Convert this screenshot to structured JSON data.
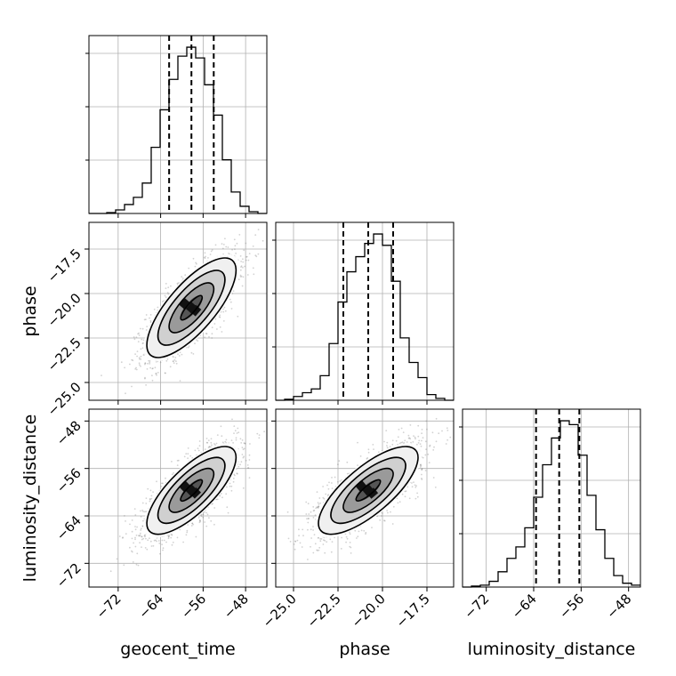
{
  "chart_data": {
    "type": "corner",
    "parameters": [
      "geocent_time",
      "phase",
      "luminosity_distance"
    ],
    "ranges": {
      "geocent_time": [
        -77.5,
        -44.0
      ],
      "phase": [
        -26.0,
        -16.0
      ],
      "luminosity_distance": [
        -76.0,
        -46.0
      ]
    },
    "ticks": {
      "geocent_time": [
        -72,
        -64,
        -56,
        -48
      ],
      "phase": [
        -25.0,
        -22.5,
        -20.0,
        -17.5
      ],
      "luminosity_distance": [
        -72,
        -64,
        -56,
        -48
      ]
    },
    "tick_labels": {
      "geocent_time": [
        "−72",
        "−64",
        "−56",
        "−48"
      ],
      "phase": [
        "−25.0",
        "−22.5",
        "−20.0",
        "−17.5"
      ],
      "luminosity_distance": [
        "−72",
        "−64",
        "−56",
        "−48"
      ]
    },
    "axis_labels": {
      "x": [
        "geocent_time",
        "phase",
        "luminosity_distance"
      ],
      "y": [
        "phase",
        "luminosity_distance"
      ]
    },
    "quantiles": {
      "geocent_time": [
        -62.4,
        -58.2,
        -54.0
      ],
      "phase": [
        -22.2,
        -20.8,
        -19.4
      ],
      "luminosity_distance": [
        -63.6,
        -59.7,
        -56.3
      ]
    },
    "histograms": {
      "geocent_time": {
        "edges": [
          -77.5,
          -75.825,
          -74.15,
          -72.475,
          -70.8,
          -69.125,
          -67.45,
          -65.775,
          -64.1,
          -62.425,
          -60.75,
          -59.075,
          -57.4,
          -55.725,
          -54.05,
          -52.375,
          -50.7,
          -49.025,
          -47.35,
          -45.675,
          -44.0
        ],
        "counts": [
          0,
          0,
          0.5,
          2,
          5,
          9,
          17,
          37,
          58,
          75,
          88,
          93,
          87,
          72,
          55,
          30,
          12,
          4,
          1,
          0
        ]
      },
      "phase": {
        "edges": [
          -26.0,
          -25.5,
          -25.0,
          -24.5,
          -24.0,
          -23.5,
          -23.0,
          -22.5,
          -22.0,
          -21.5,
          -21.0,
          -20.5,
          -20.0,
          -19.5,
          -19.0,
          -18.5,
          -18.0,
          -17.5,
          -17.0,
          -16.5,
          -16.0
        ],
        "counts": [
          0,
          0.5,
          2,
          4,
          6,
          13,
          30,
          52,
          68,
          76,
          83,
          88,
          82,
          63,
          33,
          20,
          12,
          3,
          1,
          0
        ]
      },
      "luminosity_distance": {
        "edges": [
          -76.0,
          -74.5,
          -73.0,
          -71.5,
          -70.0,
          -68.5,
          -67.0,
          -65.5,
          -64.0,
          -62.5,
          -61.0,
          -59.5,
          -58.0,
          -56.5,
          -55.0,
          -53.5,
          -52.0,
          -50.5,
          -49.0,
          -47.5,
          -46.0
        ],
        "counts": [
          0,
          0.5,
          1,
          3,
          8,
          15,
          21,
          31,
          47,
          64,
          78,
          87,
          85,
          69,
          48,
          30,
          15,
          6,
          2,
          1
        ]
      }
    },
    "posterior_2d": [
      {
        "x_param": "geocent_time",
        "y_param": "phase",
        "mean": [
          -58.2,
          -20.8
        ],
        "std": [
          4.2,
          1.4
        ],
        "correlation": 0.75
      },
      {
        "x_param": "geocent_time",
        "y_param": "luminosity_distance",
        "mean": [
          -58.2,
          -59.7
        ],
        "std": [
          4.2,
          3.7
        ],
        "correlation": 0.75
      },
      {
        "x_param": "phase",
        "y_param": "luminosity_distance",
        "mean": [
          -20.8,
          -59.7
        ],
        "std": [
          1.4,
          3.7
        ],
        "correlation": 0.75
      }
    ],
    "contour_levels_sigma": [
      0.5,
      1.0,
      1.5,
      2.0
    ],
    "grid": true,
    "colors": {
      "line": "#000000",
      "grid": "#b0b0b0",
      "points": "#7f7f7f",
      "density_max": "#000000"
    }
  }
}
